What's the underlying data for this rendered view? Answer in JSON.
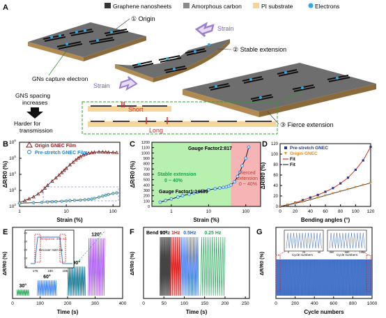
{
  "panels": {
    "A": "A",
    "B": "B",
    "C": "C",
    "D": "D",
    "E": "E",
    "F": "F",
    "G": "G"
  },
  "legend_top": {
    "graphene": "Graphene nanosheets",
    "amorphous": "Amorphous carbon",
    "pi": "PI substrate",
    "electrons": "Electrons"
  },
  "schematic": {
    "origin": "① Origin",
    "stable": "② Stable extension",
    "fierce": "③ Fierce extension",
    "strain": "Strain",
    "gns_capture": "GNs capture electron",
    "spacing": "GNS spacing\nincreases",
    "harder": "Harder for\ntransmission",
    "short": "Short",
    "long": "Long"
  },
  "colors": {
    "origin_red": "#8b1a1a",
    "prestretch_blue": "#2a7fd4",
    "fit_red": "#e03020",
    "orange": "#e08a1a",
    "green_region": "#b8f0b0",
    "pink_region": "#f7b4b4",
    "electron": "#2aa8e8",
    "strain_arrow": "#9b7fd0"
  },
  "chart_data": [
    {
      "panel": "B",
      "type": "scatter",
      "xlabel": "Strain (%)",
      "ylabel": "ΔR/R0 (%)",
      "xscale": "log",
      "yscale": "log",
      "xlim": [
        1,
        140
      ],
      "ylim": [
        100,
        1000000
      ],
      "xticks": [
        "1",
        "10",
        "100"
      ],
      "yticks": [
        "10^2",
        "10^3",
        "10^4",
        "10^5",
        "10^6"
      ],
      "series": [
        {
          "name": "Origin GNEC Film",
          "marker": "triangle",
          "color": "#8b1a1a",
          "x": [
            1,
            1.3,
            1.6,
            2,
            2.5,
            3,
            3.5,
            4,
            5,
            6,
            7,
            8,
            9,
            10,
            12,
            14,
            16,
            18,
            20,
            23,
            26,
            30,
            35,
            40,
            50,
            60,
            70,
            80,
            100,
            120
          ],
          "y": [
            180,
            230,
            300,
            400,
            600,
            900,
            1400,
            2100,
            3800,
            6000,
            9000,
            13000,
            18000,
            24000,
            40000,
            58000,
            80000,
            105000,
            130000,
            160000,
            185000,
            210000,
            230000,
            240000,
            250000,
            250000,
            245000,
            240000,
            235000,
            230000
          ]
        },
        {
          "name": "Pre-stretch GNEC Film",
          "marker": "circle",
          "color": "#2a7fd4",
          "x": [
            1,
            2,
            3,
            4,
            5,
            6,
            8,
            10,
            12,
            15,
            20,
            25,
            30,
            35,
            40,
            50,
            60,
            70,
            80,
            100,
            120
          ],
          "y": [
            160,
            170,
            180,
            190,
            195,
            200,
            210,
            220,
            230,
            240,
            250,
            260,
            275,
            290,
            320,
            380,
            440,
            500,
            560,
            640,
            700
          ]
        }
      ]
    },
    {
      "panel": "C",
      "type": "scatter",
      "xlabel": "Strain (%)",
      "ylabel": "ΔR/R0 (%)",
      "xscale": "log",
      "xlim": [
        0.3,
        250
      ],
      "ylim": [
        0,
        1200
      ],
      "xticks": [
        "1",
        "10",
        "100"
      ],
      "yticks": [
        "0",
        "100",
        "200",
        "300",
        "400",
        "500",
        "600",
        "700",
        "800",
        "900",
        "1000",
        "1100",
        "1200"
      ],
      "regions": [
        {
          "label": "Stable extension\n0 ~ 40%",
          "xrange": [
            0.3,
            40
          ],
          "color": "#b8f0b0"
        },
        {
          "label": "Fierced\nextension\n0 ~ 40%",
          "xrange": [
            40,
            250
          ],
          "color": "#f7b4b4"
        }
      ],
      "annotations": [
        "Gauge Factor2:817",
        "Gauge Factor1:14699"
      ],
      "x": [
        0.5,
        0.7,
        1,
        1.5,
        2,
        3,
        4,
        5,
        7,
        10,
        15,
        20,
        25,
        30,
        35,
        40,
        50,
        60,
        70,
        80,
        100,
        120
      ],
      "y": [
        80,
        110,
        140,
        175,
        200,
        230,
        250,
        265,
        290,
        310,
        330,
        345,
        355,
        365,
        380,
        400,
        460,
        560,
        640,
        760,
        900,
        1110
      ]
    },
    {
      "panel": "D",
      "type": "scatter",
      "xlabel": "Bending angles (°)",
      "ylabel": "ΔR/R0 (%)",
      "xlim": [
        0,
        120
      ],
      "ylim": [
        0,
        120
      ],
      "xticks": [
        "0",
        "20",
        "40",
        "60",
        "80",
        "100",
        "120"
      ],
      "yticks": [
        "0",
        "20",
        "40",
        "60",
        "80",
        "100",
        "120"
      ],
      "series": [
        {
          "name": "Pre-stretch GNEC",
          "marker": "square",
          "color": "#1f3a8a",
          "x": [
            0,
            10,
            20,
            30,
            40,
            50,
            60,
            70,
            80,
            90,
            100,
            110,
            120
          ],
          "y": [
            0,
            3,
            7,
            12,
            17,
            22,
            28,
            35,
            44,
            55,
            70,
            88,
            114
          ]
        },
        {
          "name": "Origin GNEC",
          "marker": "triangle-down",
          "color": "#e08a1a",
          "x": [
            0,
            10,
            20,
            30,
            40,
            50,
            60,
            70,
            80,
            90,
            100,
            110,
            120
          ],
          "y": [
            0,
            3,
            6,
            9,
            13,
            17,
            21,
            25,
            29,
            33,
            37,
            41,
            45
          ]
        },
        {
          "name": "Fit",
          "line": true,
          "color": "#e03020"
        },
        {
          "name": "Fit",
          "line": true,
          "color": "#333333"
        }
      ]
    },
    {
      "panel": "E",
      "type": "line",
      "xlabel": "Time (s)",
      "ylabel": "ΔR/R0 (%)",
      "xlim": [
        0,
        400
      ],
      "xticks": [
        "0",
        "100",
        "200",
        "300",
        "400"
      ],
      "blocks": [
        {
          "label": "30°",
          "t": [
            15,
            60
          ],
          "amp": 8,
          "color": "#16a34a"
        },
        {
          "label": "60°",
          "t": [
            90,
            160
          ],
          "amp": 20,
          "color": "#3b82f6"
        },
        {
          "label": "90°",
          "t": [
            200,
            265
          ],
          "amp": 38,
          "color": "#0e7490"
        },
        {
          "label": "120°",
          "t": [
            275,
            335
          ],
          "amp": 75,
          "color": "#a855f7"
        }
      ],
      "inset": {
        "xticks": [
          "175",
          "180",
          "185"
        ],
        "yticks": [
          "0",
          "10",
          "20",
          "30",
          "40"
        ],
        "response": "Response: 400 ms",
        "recover": "Recover: 520 ms"
      }
    },
    {
      "panel": "F",
      "type": "line",
      "title": "Bend 90°",
      "xlabel": "Time (s)",
      "ylabel": "ΔR/R0 (%)",
      "xlim": [
        0,
        260
      ],
      "xticks": [
        "0",
        "50",
        "100",
        "150",
        "200",
        "250"
      ],
      "blocks": [
        {
          "label": "2 Hz",
          "t": [
            40,
            66
          ],
          "color": "#444444"
        },
        {
          "label": "1Hz",
          "t": [
            66,
            92
          ],
          "color": "#e02020"
        },
        {
          "label": "0.5Hz",
          "t": [
            92,
            135
          ],
          "color": "#2563eb"
        },
        {
          "label": "0.25 Hz",
          "t": [
            140,
            200
          ],
          "color": "#22a855"
        }
      ]
    },
    {
      "panel": "G",
      "type": "line",
      "xlabel": "Cycle numbers",
      "ylabel": "ΔR/R0 (%)",
      "xlim": [
        0,
        1000
      ],
      "xticks": [
        "0",
        "200",
        "400",
        "600",
        "800",
        "1000"
      ],
      "color": "#3b6ac0",
      "insets": [
        {
          "xticks": [
            "0",
            "20",
            "40"
          ],
          "xlabel": "Cycle numbers"
        },
        {
          "xticks": [
            "960",
            "980",
            "1000"
          ],
          "xlabel": "Cycle numbers"
        }
      ]
    }
  ]
}
